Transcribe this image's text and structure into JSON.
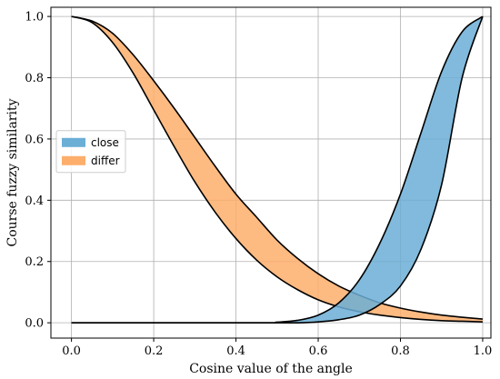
{
  "chart_data": {
    "type": "area",
    "title": "",
    "xlabel": "Cosine value of the angle",
    "ylabel": "Course fuzzy similarity",
    "xlim": [
      -0.05,
      1.02
    ],
    "ylim": [
      -0.05,
      1.03
    ],
    "x_ticks": [
      0.0,
      0.2,
      0.4,
      0.6,
      0.8,
      1.0
    ],
    "y_ticks": [
      0.0,
      0.2,
      0.4,
      0.6,
      0.8,
      1.0
    ],
    "x_tick_labels": [
      "0.0",
      "0.2",
      "0.4",
      "0.6",
      "0.8",
      "1.0"
    ],
    "y_tick_labels": [
      "0.0",
      "0.2",
      "0.4",
      "0.6",
      "0.8",
      "1.0"
    ],
    "grid": true,
    "legend_position": "center-left",
    "series": [
      {
        "name": "close",
        "color": "#6baed6",
        "x": [
          0.0,
          0.45,
          0.5,
          0.55,
          0.6,
          0.65,
          0.7,
          0.75,
          0.8,
          0.85,
          0.9,
          0.95,
          1.0
        ],
        "upper": [
          0.0,
          0.0,
          0.002,
          0.008,
          0.025,
          0.065,
          0.14,
          0.26,
          0.42,
          0.62,
          0.82,
          0.95,
          1.0
        ],
        "lower": [
          0.0,
          0.0,
          0.0,
          0.0,
          0.003,
          0.01,
          0.025,
          0.06,
          0.12,
          0.24,
          0.45,
          0.8,
          1.0
        ]
      },
      {
        "name": "differ",
        "color": "#fdae6b",
        "x": [
          0.0,
          0.05,
          0.1,
          0.15,
          0.2,
          0.25,
          0.3,
          0.35,
          0.4,
          0.45,
          0.5,
          0.55,
          0.6,
          0.65,
          0.7,
          0.75,
          0.8,
          0.85,
          0.9,
          0.95,
          1.0
        ],
        "upper": [
          1.0,
          0.985,
          0.945,
          0.875,
          0.79,
          0.7,
          0.605,
          0.51,
          0.42,
          0.345,
          0.27,
          0.21,
          0.16,
          0.12,
          0.09,
          0.065,
          0.048,
          0.035,
          0.025,
          0.018,
          0.012
        ],
        "lower": [
          1.0,
          0.98,
          0.915,
          0.815,
          0.695,
          0.575,
          0.46,
          0.36,
          0.275,
          0.205,
          0.15,
          0.108,
          0.075,
          0.052,
          0.036,
          0.025,
          0.017,
          0.011,
          0.007,
          0.005,
          0.003
        ]
      }
    ]
  }
}
